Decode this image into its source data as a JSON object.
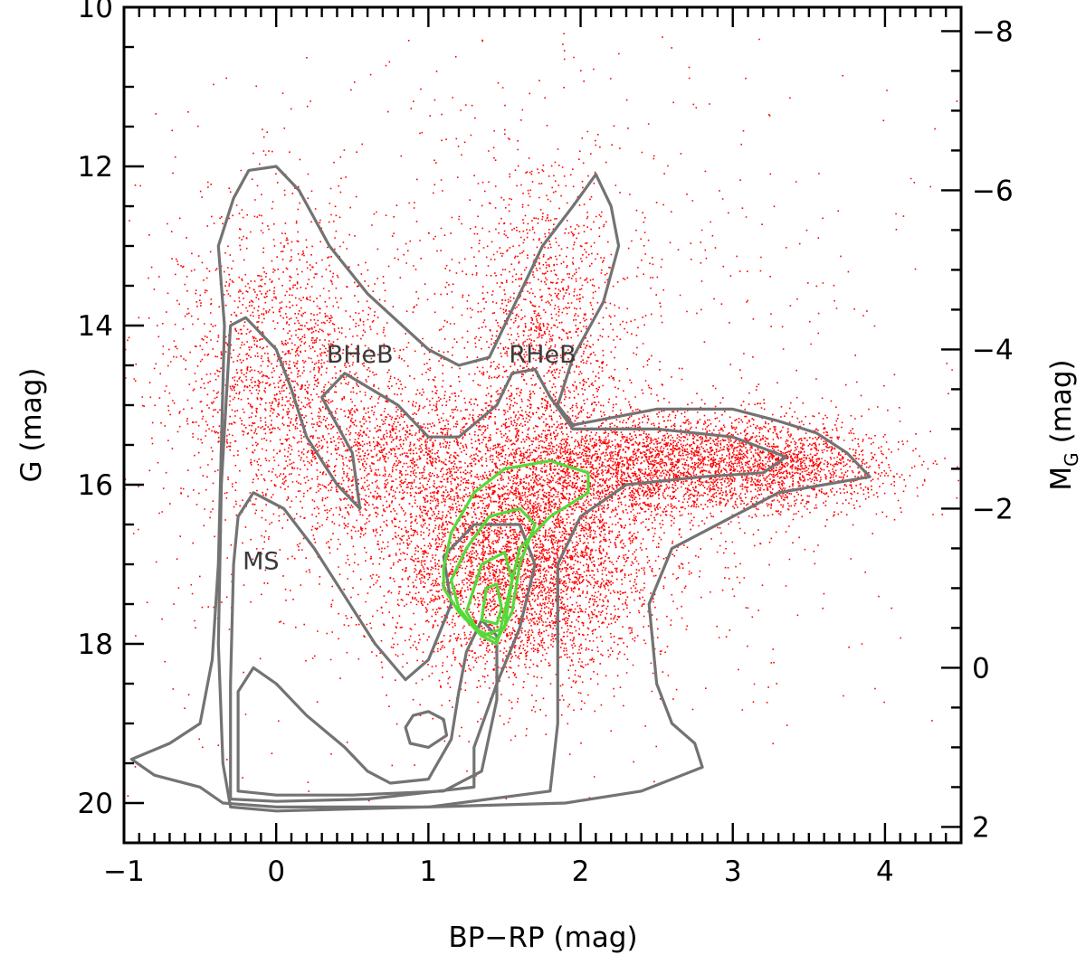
{
  "chart_data": {
    "type": "scatter",
    "title": "",
    "xlabel": "BP−RP (mag)",
    "ylabel": "G (mag)",
    "ylabel_right_main": "M",
    "ylabel_right_sub": "G",
    "ylabel_right_unit": "(mag)",
    "xlim": [
      -1,
      4.5
    ],
    "ylim": [
      20.5,
      10
    ],
    "y2lim": [
      2.2,
      -8.3
    ],
    "grid": false,
    "legend": "none",
    "x_ticks": [
      {
        "value": -1,
        "label": "−1"
      },
      {
        "value": 0,
        "label": "0"
      },
      {
        "value": 1,
        "label": "1"
      },
      {
        "value": 2,
        "label": "2"
      },
      {
        "value": 3,
        "label": "3"
      },
      {
        "value": 4,
        "label": "4"
      }
    ],
    "y_ticks": [
      {
        "value": 10,
        "label": "10"
      },
      {
        "value": 12,
        "label": "12"
      },
      {
        "value": 14,
        "label": "14"
      },
      {
        "value": 16,
        "label": "16"
      },
      {
        "value": 18,
        "label": "18"
      },
      {
        "value": 20,
        "label": "20"
      }
    ],
    "y2_ticks": [
      {
        "value": -8,
        "label": "−8"
      },
      {
        "value": -6,
        "label": "−6"
      },
      {
        "value": -4,
        "label": "−4"
      },
      {
        "value": -2,
        "label": "−2"
      },
      {
        "value": 0,
        "label": "0"
      },
      {
        "value": 2,
        "label": "2"
      }
    ],
    "annotations": [
      {
        "text": "BHeB",
        "x": 0.55,
        "y": 14.35
      },
      {
        "text": "RHeB",
        "x": 1.75,
        "y": 14.35
      },
      {
        "text": "MS",
        "x": -0.1,
        "y": 16.95
      }
    ],
    "colors": {
      "points": "#ff0000",
      "contour_outer": "#737373",
      "contour_inner": "#55d93a",
      "annotation": "#3a3a3a"
    },
    "point_density_regions": [
      {
        "name": "red-clump",
        "cx": 1.6,
        "cy": 16.9,
        "sx": 0.45,
        "sy": 0.75,
        "weight": 0.33
      },
      {
        "name": "rgb-tail",
        "cx": 2.5,
        "cy": 15.75,
        "sx": 0.55,
        "sy": 0.35,
        "weight": 0.2
      },
      {
        "name": "rgb-tip",
        "cx": 3.4,
        "cy": 15.75,
        "sx": 0.35,
        "sy": 0.25,
        "weight": 0.07
      },
      {
        "name": "bheb",
        "cx": 0.05,
        "cy": 14.6,
        "sx": 0.35,
        "sy": 1.0,
        "weight": 0.12
      },
      {
        "name": "rheb",
        "cx": 1.75,
        "cy": 14.2,
        "sx": 0.28,
        "sy": 1.1,
        "weight": 0.1
      },
      {
        "name": "bridge",
        "cx": 0.8,
        "cy": 15.6,
        "sx": 0.35,
        "sy": 0.5,
        "weight": 0.08
      },
      {
        "name": "halo",
        "cx": 1.5,
        "cy": 14.8,
        "sx": 1.5,
        "sy": 2.4,
        "weight": 0.1
      }
    ],
    "contours": [
      {
        "level": "outer",
        "color": "#737373",
        "points": [
          [
            -0.35,
            20.0
          ],
          [
            -0.5,
            19.8
          ],
          [
            -0.8,
            19.65
          ],
          [
            -0.95,
            19.45
          ],
          [
            -0.7,
            19.25
          ],
          [
            -0.5,
            19.0
          ],
          [
            -0.42,
            18.2
          ],
          [
            -0.38,
            17.0
          ],
          [
            -0.36,
            15.5
          ],
          [
            -0.34,
            14.0
          ],
          [
            -0.38,
            13.0
          ],
          [
            -0.28,
            12.4
          ],
          [
            -0.18,
            12.05
          ],
          [
            0.0,
            12.0
          ],
          [
            0.15,
            12.3
          ],
          [
            0.35,
            13.0
          ],
          [
            0.6,
            13.6
          ],
          [
            0.8,
            13.95
          ],
          [
            1.0,
            14.3
          ],
          [
            1.2,
            14.5
          ],
          [
            1.4,
            14.4
          ],
          [
            1.55,
            13.8
          ],
          [
            1.75,
            13.0
          ],
          [
            1.95,
            12.5
          ],
          [
            2.1,
            12.1
          ],
          [
            2.2,
            12.5
          ],
          [
            2.25,
            13.0
          ],
          [
            2.15,
            13.7
          ],
          [
            1.95,
            14.4
          ],
          [
            1.85,
            15.0
          ],
          [
            1.95,
            15.25
          ],
          [
            2.5,
            15.05
          ],
          [
            3.0,
            15.05
          ],
          [
            3.3,
            15.2
          ],
          [
            3.55,
            15.35
          ],
          [
            3.75,
            15.6
          ],
          [
            3.9,
            15.9
          ],
          [
            3.6,
            16.0
          ],
          [
            3.3,
            16.1
          ],
          [
            3.0,
            16.4
          ],
          [
            2.6,
            16.8
          ],
          [
            2.45,
            17.5
          ],
          [
            2.5,
            18.5
          ],
          [
            2.6,
            19.0
          ],
          [
            2.75,
            19.25
          ],
          [
            2.8,
            19.55
          ],
          [
            2.4,
            19.85
          ],
          [
            1.9,
            20.0
          ],
          [
            1.0,
            20.05
          ],
          [
            0.0,
            20.05
          ]
        ]
      },
      {
        "level": "mid",
        "color": "#737373",
        "points": [
          [
            -0.3,
            20.05
          ],
          [
            -0.35,
            19.5
          ],
          [
            -0.38,
            18.0
          ],
          [
            -0.36,
            16.0
          ],
          [
            -0.3,
            14.0
          ],
          [
            -0.2,
            13.9
          ],
          [
            0.0,
            14.3
          ],
          [
            0.1,
            14.8
          ],
          [
            0.2,
            15.4
          ],
          [
            0.4,
            16.0
          ],
          [
            0.55,
            16.3
          ],
          [
            0.5,
            15.6
          ],
          [
            0.3,
            14.9
          ],
          [
            0.45,
            14.6
          ],
          [
            0.8,
            15.0
          ],
          [
            1.0,
            15.4
          ],
          [
            1.2,
            15.4
          ],
          [
            1.45,
            15.0
          ],
          [
            1.55,
            14.6
          ],
          [
            1.7,
            14.55
          ],
          [
            1.8,
            14.9
          ],
          [
            1.95,
            15.3
          ],
          [
            2.5,
            15.3
          ],
          [
            3.0,
            15.4
          ],
          [
            3.35,
            15.65
          ],
          [
            3.2,
            15.85
          ],
          [
            2.8,
            15.9
          ],
          [
            2.3,
            16.0
          ],
          [
            2.0,
            16.4
          ],
          [
            1.85,
            17.0
          ],
          [
            1.85,
            18.0
          ],
          [
            1.85,
            19.0
          ],
          [
            1.8,
            19.85
          ],
          [
            1.0,
            20.05
          ],
          [
            0.0,
            20.1
          ]
        ]
      },
      {
        "level": "ms-inner",
        "color": "#737373",
        "points": [
          [
            -0.3,
            19.95
          ],
          [
            -0.3,
            18.5
          ],
          [
            -0.28,
            17.0
          ],
          [
            -0.25,
            16.4
          ],
          [
            -0.15,
            16.1
          ],
          [
            0.05,
            16.3
          ],
          [
            0.25,
            16.8
          ],
          [
            0.45,
            17.4
          ],
          [
            0.65,
            18.0
          ],
          [
            0.85,
            18.45
          ],
          [
            1.0,
            18.2
          ],
          [
            1.15,
            17.5
          ],
          [
            1.1,
            16.9
          ],
          [
            1.3,
            16.5
          ],
          [
            1.6,
            16.5
          ],
          [
            1.7,
            17.0
          ],
          [
            1.6,
            17.8
          ],
          [
            1.45,
            18.5
          ],
          [
            1.3,
            19.3
          ],
          [
            1.3,
            19.8
          ],
          [
            0.6,
            19.95
          ],
          [
            0.0,
            19.98
          ]
        ]
      },
      {
        "level": "ms-core",
        "color": "#737373",
        "points": [
          [
            -0.25,
            19.85
          ],
          [
            -0.25,
            18.6
          ],
          [
            -0.15,
            18.3
          ],
          [
            0.0,
            18.5
          ],
          [
            0.2,
            18.9
          ],
          [
            0.45,
            19.3
          ],
          [
            0.6,
            19.6
          ],
          [
            0.75,
            19.75
          ],
          [
            1.0,
            19.7
          ],
          [
            1.15,
            19.2
          ],
          [
            1.2,
            18.6
          ],
          [
            1.25,
            18.1
          ],
          [
            1.35,
            17.7
          ],
          [
            1.45,
            17.9
          ],
          [
            1.45,
            18.7
          ],
          [
            1.35,
            19.6
          ],
          [
            1.1,
            19.85
          ],
          [
            0.5,
            19.9
          ],
          [
            0.0,
            19.9
          ]
        ]
      },
      {
        "level": "ms-blob",
        "color": "#737373",
        "points": [
          [
            0.85,
            19.05
          ],
          [
            0.9,
            18.9
          ],
          [
            1.0,
            18.85
          ],
          [
            1.1,
            18.95
          ],
          [
            1.12,
            19.15
          ],
          [
            1.0,
            19.3
          ],
          [
            0.88,
            19.25
          ]
        ]
      },
      {
        "level": "rc-1",
        "color": "#55d93a",
        "points": [
          [
            1.1,
            17.05
          ],
          [
            1.15,
            16.6
          ],
          [
            1.3,
            16.1
          ],
          [
            1.5,
            15.8
          ],
          [
            1.8,
            15.7
          ],
          [
            2.05,
            15.85
          ],
          [
            2.05,
            16.1
          ],
          [
            1.8,
            16.4
          ],
          [
            1.6,
            16.8
          ],
          [
            1.5,
            17.6
          ],
          [
            1.45,
            18.0
          ],
          [
            1.35,
            17.9
          ],
          [
            1.2,
            17.6
          ],
          [
            1.1,
            17.3
          ]
        ]
      },
      {
        "level": "rc-2",
        "color": "#55d93a",
        "points": [
          [
            1.15,
            17.2
          ],
          [
            1.25,
            16.8
          ],
          [
            1.4,
            16.4
          ],
          [
            1.6,
            16.3
          ],
          [
            1.7,
            16.5
          ],
          [
            1.6,
            17.0
          ],
          [
            1.55,
            17.6
          ],
          [
            1.45,
            17.95
          ],
          [
            1.3,
            17.8
          ],
          [
            1.2,
            17.55
          ]
        ]
      },
      {
        "level": "rc-3",
        "color": "#55d93a",
        "points": [
          [
            1.25,
            17.6
          ],
          [
            1.35,
            17.0
          ],
          [
            1.5,
            16.85
          ],
          [
            1.55,
            17.2
          ],
          [
            1.5,
            17.8
          ],
          [
            1.35,
            17.9
          ]
        ]
      },
      {
        "level": "rc-4",
        "color": "#55d93a",
        "points": [
          [
            1.35,
            17.7
          ],
          [
            1.38,
            17.3
          ],
          [
            1.45,
            17.25
          ],
          [
            1.48,
            17.55
          ],
          [
            1.45,
            17.75
          ]
        ]
      }
    ]
  }
}
